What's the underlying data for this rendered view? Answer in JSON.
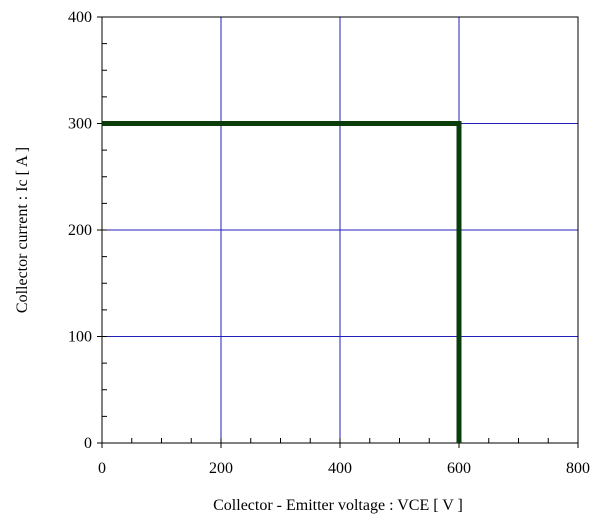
{
  "chart_data": {
    "type": "line",
    "xlabel": "Collector - Emitter voltage  :  VCE  [ V ]",
    "ylabel": "Collector current  : Ic  [ A ]",
    "xlim": [
      0,
      800
    ],
    "ylim": [
      0,
      400
    ],
    "x_ticks": [
      0,
      200,
      400,
      600,
      800
    ],
    "y_ticks": [
      0,
      100,
      200,
      300,
      400
    ],
    "grid": true,
    "series": [
      {
        "x": [
          0,
          600,
          600
        ],
        "y": [
          300,
          300,
          0
        ]
      }
    ],
    "colors": {
      "grid": "#2222bb",
      "series": "#0b3d0b",
      "axis": "#000000"
    }
  }
}
